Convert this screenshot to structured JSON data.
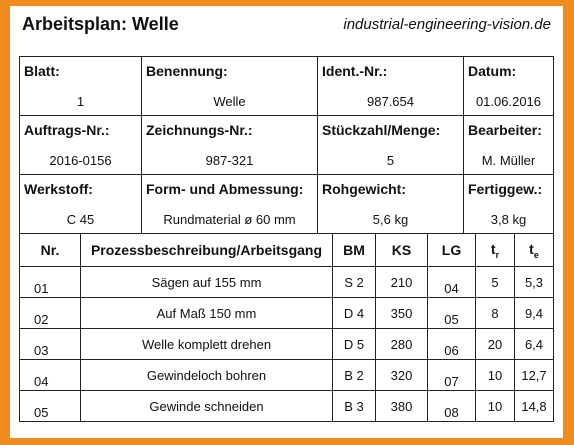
{
  "header": {
    "title": "Arbeitsplan: Welle",
    "website": "industrial-engineering-vision.de"
  },
  "meta": [
    [
      {
        "label": "Blatt:",
        "value": "1"
      },
      {
        "label": "Benennung:",
        "value": "Welle"
      },
      {
        "label": "Ident.-Nr.:",
        "value": "987.654"
      },
      {
        "label": "Datum:",
        "value": "01.06.2016"
      }
    ],
    [
      {
        "label": "Auftrags-Nr.:",
        "value": "2016-0156"
      },
      {
        "label": "Zeichnungs-Nr.:",
        "value": "987-321"
      },
      {
        "label": "Stückzahl/Menge:",
        "value": "5"
      },
      {
        "label": "Bearbeiter:",
        "value": "M. Müller"
      }
    ],
    [
      {
        "label": "Werkstoff:",
        "value": "C 45"
      },
      {
        "label": "Form- und Abmessung:",
        "value": "Rundmaterial ø 60 mm"
      },
      {
        "label": "Rohgewicht:",
        "value": "5,6 kg"
      },
      {
        "label": "Fertiggew.:",
        "value": "3,8 kg"
      }
    ]
  ],
  "operations": {
    "columns": {
      "nr": "Nr.",
      "process": "Prozessbeschreibung/Arbeitsgang",
      "bm": "BM",
      "ks": "KS",
      "lg": "LG",
      "tr_base": "t",
      "tr_sub": "r",
      "te_base": "t",
      "te_sub": "e"
    },
    "rows": [
      {
        "nr": "01",
        "process": "Sägen auf 155 mm",
        "bm": "S 2",
        "ks": "210",
        "lg": "04",
        "tr": "5",
        "te": "5,3"
      },
      {
        "nr": "02",
        "process": "Auf Maß 150 mm",
        "bm": "D 4",
        "ks": "350",
        "lg": "05",
        "tr": "8",
        "te": "9,4"
      },
      {
        "nr": "03",
        "process": "Welle komplett drehen",
        "bm": "D 5",
        "ks": "280",
        "lg": "06",
        "tr": "20",
        "te": "6,4"
      },
      {
        "nr": "04",
        "process": "Gewindeloch bohren",
        "bm": "B 2",
        "ks": "320",
        "lg": "07",
        "tr": "10",
        "te": "12,7"
      },
      {
        "nr": "05",
        "process": "Gewinde schneiden",
        "bm": "B 3",
        "ks": "380",
        "lg": "08",
        "tr": "10",
        "te": "14,8"
      }
    ]
  }
}
